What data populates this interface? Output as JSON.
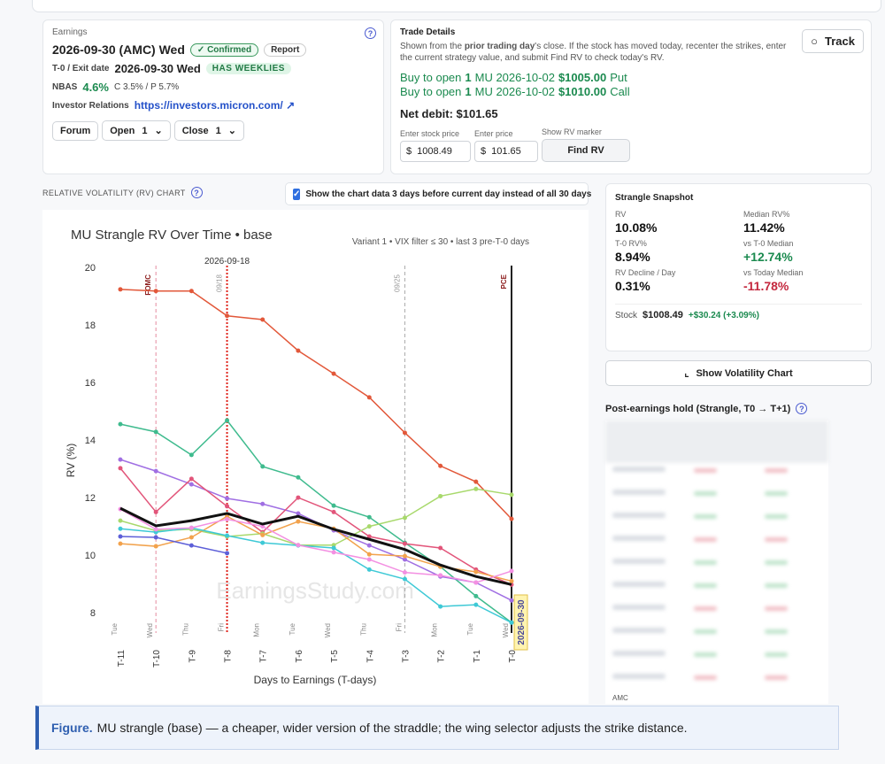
{
  "earnings": {
    "section_label": "Earnings",
    "date": "2026-09-30 (AMC) Wed",
    "confirmed": "Confirmed",
    "report": "Report",
    "exit_label": "T-0 / Exit date",
    "exit_date": "2026-09-30 Wed",
    "weeklies": "HAS WEEKLIES",
    "nbas_label": "NBAS",
    "nbas": "4.6%",
    "cp": "C 3.5% / P 5.7%",
    "ir_label": "Investor Relations",
    "ir_url": "https://investors.micron.com/",
    "forum": "Forum",
    "open": "Open",
    "open_qty": "1",
    "close": "Close",
    "close_qty": "1"
  },
  "trade": {
    "title": "Trade Details",
    "note_before": "Shown from the",
    "note_bold": "prior trading day",
    "note_after": "'s close. If the stock has moved today, recenter the strikes, enter the current strategy value, and submit Find RV to check today's RV.",
    "track": "Track",
    "legs": [
      {
        "prefix": "Buy to open",
        "qty": "1",
        "contract": "MU 2026-10-02",
        "strike": "$1005.00",
        "kind": "Put"
      },
      {
        "prefix": "Buy to open",
        "qty": "1",
        "contract": "MU 2026-10-02",
        "strike": "$1010.00",
        "kind": "Call"
      }
    ],
    "net_debit": "Net debit: $101.65",
    "stock_price_label": "Enter stock price",
    "stock_price": "1008.49",
    "price_label": "Enter price",
    "price": "101.65",
    "currency": "$",
    "marker_label": "Show RV marker",
    "find_rv": "Find RV"
  },
  "chart_header": {
    "title": "RELATIVE VOLATILITY (RV) CHART",
    "checkbox": "Show the chart data 3 days before current day instead of all 30 days"
  },
  "chart_data": {
    "type": "line",
    "title": "MU Strangle RV Over Time • base",
    "subtitle": "Variant 1 • VIX filter ≤ 30 • last 3 pre-T-0 days",
    "x_label": "Days to Earnings (T-days)",
    "y_label": "RV (%)",
    "watermark": "EarningsStudy.com",
    "categories": [
      "T-11",
      "T-10",
      "T-9",
      "T-8",
      "T-7",
      "T-6",
      "T-5",
      "T-4",
      "T-3",
      "T-2",
      "T-1",
      "T-0"
    ],
    "day_labels": [
      "Tue",
      "Wed",
      "Thu",
      "Fri",
      "Mon",
      "Tue",
      "Wed",
      "Thu",
      "Fri",
      "Mon",
      "Tue",
      "Wed"
    ],
    "ylim": [
      7.3,
      20.3
    ],
    "yticks": [
      8,
      10,
      12,
      14,
      16,
      18,
      20
    ],
    "grid": false,
    "series": [
      {
        "color": "#e2583a",
        "width": 1.5,
        "values": [
          19.23,
          19.17,
          19.17,
          18.31,
          18.18,
          17.1,
          16.3,
          15.48,
          14.25,
          13.1,
          12.55,
          11.26
        ]
      },
      {
        "color": "#3fbb8e",
        "width": 1.5,
        "values": [
          14.55,
          14.28,
          13.48,
          14.68,
          13.08,
          12.7,
          11.72,
          11.32,
          10.43,
          9.6,
          8.58,
          7.66
        ]
      },
      {
        "color": "#a06fe3",
        "width": 1.5,
        "values": [
          13.32,
          12.92,
          12.46,
          11.97,
          11.78,
          11.45,
          10.86,
          10.34,
          9.85,
          9.26,
          9.05,
          8.43
        ]
      },
      {
        "color": "#e2557a",
        "width": 1.5,
        "values": [
          13.02,
          11.5,
          12.65,
          11.7,
          10.8,
          12.0,
          11.5,
          10.65,
          10.4,
          10.25,
          9.5,
          8.98
        ]
      },
      {
        "color": "#a8d96c",
        "width": 1.5,
        "values": [
          11.2,
          10.85,
          10.9,
          10.65,
          10.75,
          10.35,
          10.35,
          11.0,
          11.3,
          12.05,
          12.3,
          12.1
        ]
      },
      {
        "color": "#f2a24c",
        "width": 1.5,
        "values": [
          10.4,
          10.31,
          10.62,
          11.35,
          10.7,
          11.17,
          10.92,
          10.03,
          9.97,
          9.6,
          9.42,
          9.1
        ]
      },
      {
        "color": "#3ec9d6",
        "width": 1.5,
        "values": [
          10.92,
          10.8,
          10.95,
          10.68,
          10.43,
          10.34,
          10.25,
          9.5,
          9.17,
          8.22,
          8.28,
          7.66
        ]
      },
      {
        "color": "#f390e2",
        "width": 1.5,
        "values": [
          11.6,
          10.9,
          10.95,
          11.25,
          11.0,
          10.35,
          10.1,
          9.85,
          9.4,
          9.3,
          9.05,
          9.45
        ]
      },
      {
        "color": "#5d5fd8",
        "width": 1.5,
        "values": [
          10.65,
          10.62,
          10.34,
          10.07,
          null,
          null,
          null,
          null,
          null,
          null,
          null,
          null
        ]
      },
      {
        "color": "#111111",
        "width": 3,
        "values": [
          11.63,
          11.02,
          11.2,
          11.45,
          11.08,
          11.35,
          10.9,
          10.55,
          10.2,
          9.66,
          9.26,
          8.98
        ]
      }
    ],
    "annotations": [
      {
        "x": "T-10",
        "label": "FOMC",
        "color": "#e58ba0",
        "label_color": "#8b1a1a",
        "style": "dashed"
      },
      {
        "x": "T-8",
        "label": "09/18",
        "top_label": "2026-09-18",
        "color": "#e0261e",
        "label_color": "#999999",
        "style": "dotted"
      },
      {
        "x": "T-3",
        "label": "09/25",
        "color": "#aaaaaa",
        "label_color": "#999999",
        "style": "dashed"
      },
      {
        "x": "T-0",
        "label": "PCE",
        "marker_label": "2026-09-30",
        "color": "#222222",
        "label_color": "#8b1a1a",
        "style": "solid"
      }
    ]
  },
  "snapshot": {
    "title": "Strangle Snapshot",
    "items": [
      {
        "label": "RV",
        "value": "10.08%",
        "color": "#111111"
      },
      {
        "label": "Median RV%",
        "value": "11.42%",
        "color": "#111111"
      },
      {
        "label": "T-0 RV%",
        "value": "8.94%",
        "color": "#111111"
      },
      {
        "label": "vs T-0 Median",
        "value": "+12.74%",
        "color": "#1b8a4f"
      },
      {
        "label": "RV Decline / Day",
        "value": "0.31%",
        "color": "#111111"
      },
      {
        "label": "vs Today Median",
        "value": "-11.78%",
        "color": "#c4283e"
      }
    ],
    "stock_label": "Stock",
    "stock": "$1008.49",
    "change": "+$30.24 (+3.09%)"
  },
  "vol_button": "Show Volatility Chart",
  "hold": {
    "title": "Post-earnings hold (Strangle, T0 → T+1)",
    "last_row": "AMC"
  },
  "caption": {
    "lead": "Figure.",
    "text": "MU strangle (base) — a cheaper, wider version of the straddle; the wing selector adjusts the strike distance."
  }
}
